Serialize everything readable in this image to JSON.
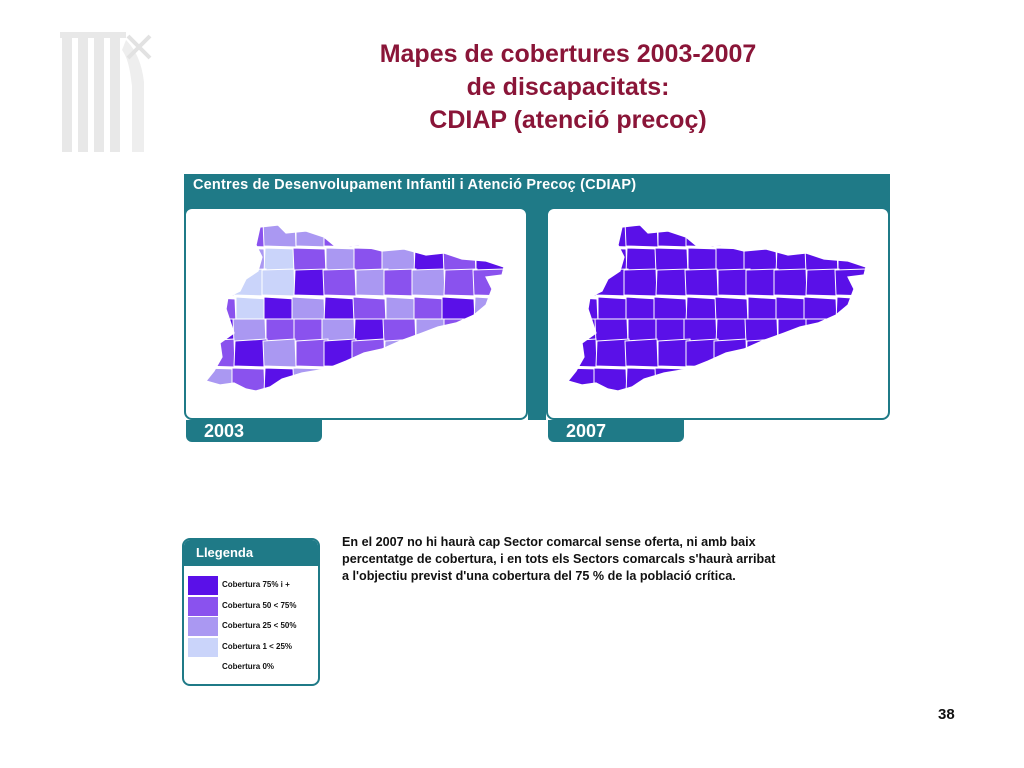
{
  "title": {
    "line1": "Mapes de cobertures 2003-2007",
    "line2": "de discapacitats:",
    "line3": "CDIAP (atenció precoç)"
  },
  "panel": {
    "header": "Centres de Desenvolupament Infantil i Atenció Precoç (CDIAP)",
    "maps": [
      {
        "year": "2003"
      },
      {
        "year": "2007"
      }
    ]
  },
  "colors": {
    "teal": "#1f7a87",
    "title": "#8a1538",
    "c75": "#5a10e8",
    "c50": "#8a52ee",
    "c25": "#aa98f2",
    "c1": "#cad4fa",
    "c0": "#ffffff"
  },
  "legend": {
    "title": "Llegenda",
    "items": [
      {
        "label": "Cobertura 75% i +",
        "color": "#5a10e8"
      },
      {
        "label": "Cobertura 50 < 75%",
        "color": "#8a52ee"
      },
      {
        "label": "Cobertura 25 < 50%",
        "color": "#aa98f2"
      },
      {
        "label": "Cobertura 1 < 25%",
        "color": "#cad4fa"
      },
      {
        "label": "Cobertura 0%",
        "color": "#ffffff"
      }
    ]
  },
  "note": {
    "line1": "En el 2007 no hi haurà cap Sector comarcal sense oferta, ni amb baix",
    "line2": "percentatge de cobertura, i en tots els Sectors comarcals s'haurà arribat",
    "line3": "a l'objectiu previst d'una cobertura del 75 % de la població crítica."
  },
  "page_number": "38"
}
